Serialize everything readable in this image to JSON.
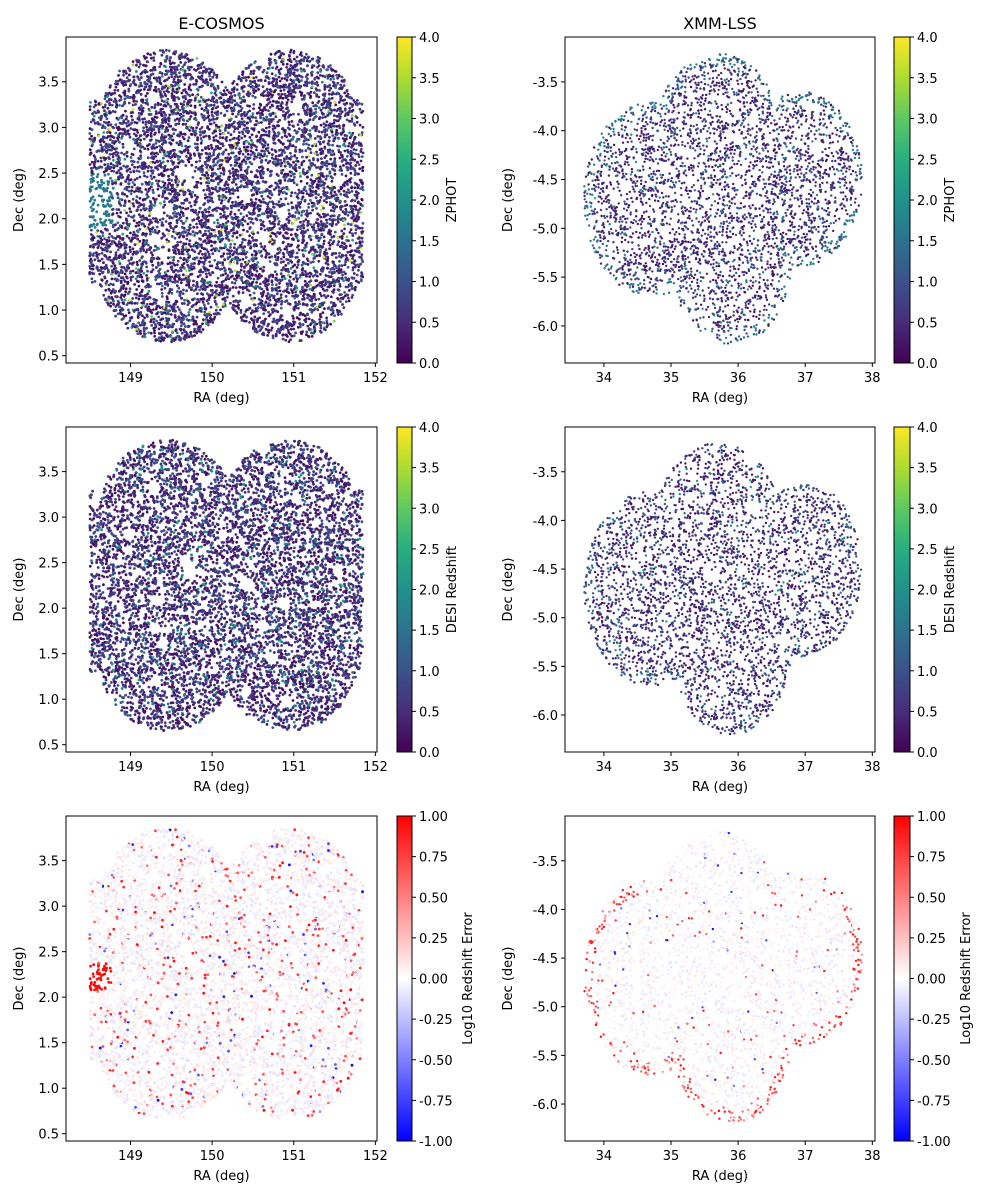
{
  "footprints": {
    "E-COSMOS": {
      "circles": [
        [
          149.45,
          1.5,
          0.85
        ],
        [
          150.95,
          1.5,
          0.85
        ],
        [
          149.45,
          3.0,
          0.85
        ],
        [
          150.95,
          3.0,
          0.85
        ]
      ],
      "rects": [
        [
          148.5,
          151.85,
          1.3,
          3.3
        ]
      ],
      "masks": [
        [
          149.28,
          3.32
        ],
        [
          149.92,
          3.39
        ],
        [
          150.63,
          3.74
        ],
        [
          151.03,
          3.21
        ],
        [
          148.98,
          2.8
        ],
        [
          149.68,
          2.51
        ],
        [
          150.42,
          2.27
        ],
        [
          151.54,
          2.41
        ],
        [
          149.73,
          2.39
        ],
        [
          149.34,
          2.08
        ],
        [
          150.87,
          2.06
        ],
        [
          149.3,
          1.78
        ],
        [
          150.63,
          1.8
        ],
        [
          149.4,
          1.62
        ],
        [
          150.71,
          1.46
        ],
        [
          149.31,
          1.2
        ],
        [
          150.42,
          1.09
        ],
        [
          150.92,
          0.97
        ]
      ],
      "mask_radius": 0.07
    },
    "XMM-LSS": {
      "circles": [
        [
          35.7,
          -4.2,
          1.0
        ],
        [
          36.95,
          -4.5,
          0.9
        ],
        [
          34.7,
          -4.7,
          1.0
        ],
        [
          35.9,
          -5.3,
          0.9
        ]
      ],
      "rects": [],
      "masks": [
        [
          36.26,
          -3.87
        ],
        [
          34.54,
          -4.3
        ],
        [
          34.91,
          -4.4
        ],
        [
          37.11,
          -4.18
        ]
      ],
      "mask_radius": 0.06
    }
  },
  "chart_data": [
    {
      "type": "scatter",
      "field": "E-COSMOS",
      "title": "E-COSMOS",
      "xlabel": "RA (deg)",
      "ylabel": "Dec (deg)",
      "xlim": [
        148.21,
        152.02
      ],
      "ylim": [
        0.42,
        3.99
      ],
      "xticks": [
        "149",
        "150",
        "151",
        "152"
      ],
      "yticks": [
        "0.5",
        "1.0",
        "1.5",
        "2.0",
        "2.5",
        "3.0",
        "3.5"
      ],
      "colorbar": {
        "label": "ZPHOT",
        "cmap": "viridis",
        "range": [
          0,
          4
        ],
        "ticks": [
          "0.0",
          "0.5",
          "1.0",
          "1.5",
          "2.0",
          "2.5",
          "3.0",
          "3.5",
          "4.0"
        ]
      },
      "color_model": "zphot"
    },
    {
      "type": "scatter",
      "field": "XMM-LSS",
      "title": "XMM-LSS",
      "xlabel": "RA (deg)",
      "ylabel": "Dec (deg)",
      "xlim": [
        33.42,
        38.04
      ],
      "ylim": [
        -6.38,
        -3.04
      ],
      "xticks": [
        "34",
        "35",
        "36",
        "37",
        "38"
      ],
      "yticks": [
        "-6.0",
        "-5.5",
        "-5.0",
        "-4.5",
        "-4.0",
        "-3.5"
      ],
      "colorbar": {
        "label": "ZPHOT",
        "cmap": "viridis",
        "range": [
          0,
          4
        ],
        "ticks": [
          "0.0",
          "0.5",
          "1.0",
          "1.5",
          "2.0",
          "2.5",
          "3.0",
          "3.5",
          "4.0"
        ]
      },
      "color_model": "zphot"
    },
    {
      "type": "scatter",
      "field": "E-COSMOS",
      "title": "",
      "xlabel": "RA (deg)",
      "ylabel": "Dec (deg)",
      "xlim": [
        148.21,
        152.02
      ],
      "ylim": [
        0.42,
        3.99
      ],
      "xticks": [
        "149",
        "150",
        "151",
        "152"
      ],
      "yticks": [
        "0.5",
        "1.0",
        "1.5",
        "2.0",
        "2.5",
        "3.0",
        "3.5"
      ],
      "colorbar": {
        "label": "DESI Redshift",
        "cmap": "viridis",
        "range": [
          0,
          4
        ],
        "ticks": [
          "0.0",
          "0.5",
          "1.0",
          "1.5",
          "2.0",
          "2.5",
          "3.0",
          "3.5",
          "4.0"
        ]
      },
      "color_model": "desi"
    },
    {
      "type": "scatter",
      "field": "XMM-LSS",
      "title": "",
      "xlabel": "RA (deg)",
      "ylabel": "Dec (deg)",
      "xlim": [
        33.42,
        38.04
      ],
      "ylim": [
        -6.38,
        -3.04
      ],
      "xticks": [
        "34",
        "35",
        "36",
        "37",
        "38"
      ],
      "yticks": [
        "-6.0",
        "-5.5",
        "-5.0",
        "-4.5",
        "-4.0",
        "-3.5"
      ],
      "colorbar": {
        "label": "DESI Redshift",
        "cmap": "viridis",
        "range": [
          0,
          4
        ],
        "ticks": [
          "0.0",
          "0.5",
          "1.0",
          "1.5",
          "2.0",
          "2.5",
          "3.0",
          "3.5",
          "4.0"
        ]
      },
      "color_model": "desi"
    },
    {
      "type": "scatter",
      "field": "E-COSMOS",
      "title": "",
      "xlabel": "RA (deg)",
      "ylabel": "Dec (deg)",
      "xlim": [
        148.21,
        152.02
      ],
      "ylim": [
        0.42,
        3.99
      ],
      "xticks": [
        "149",
        "150",
        "151",
        "152"
      ],
      "yticks": [
        "0.5",
        "1.0",
        "1.5",
        "2.0",
        "2.5",
        "3.0",
        "3.5"
      ],
      "colorbar": {
        "label": "Log10 Redshift Error",
        "cmap": "bwr",
        "range": [
          -1,
          1
        ],
        "ticks": [
          "-1.00",
          "-0.75",
          "-0.50",
          "-0.25",
          "0.00",
          "0.25",
          "0.50",
          "0.75",
          "1.00"
        ]
      },
      "color_model": "error"
    },
    {
      "type": "scatter",
      "field": "XMM-LSS",
      "title": "",
      "xlabel": "RA (deg)",
      "ylabel": "Dec (deg)",
      "xlim": [
        33.42,
        38.04
      ],
      "ylim": [
        -6.38,
        -3.04
      ],
      "xticks": [
        "34",
        "35",
        "36",
        "37",
        "38"
      ],
      "yticks": [
        "-6.0",
        "-5.5",
        "-5.0",
        "-4.5",
        "-4.0",
        "-3.5"
      ],
      "colorbar": {
        "label": "Log10 Redshift Error",
        "cmap": "bwr",
        "range": [
          -1,
          1
        ],
        "ticks": [
          "-1.00",
          "-0.75",
          "-0.50",
          "-0.25",
          "0.00",
          "0.25",
          "0.50",
          "0.75",
          "1.00"
        ]
      },
      "color_model": "error"
    }
  ]
}
